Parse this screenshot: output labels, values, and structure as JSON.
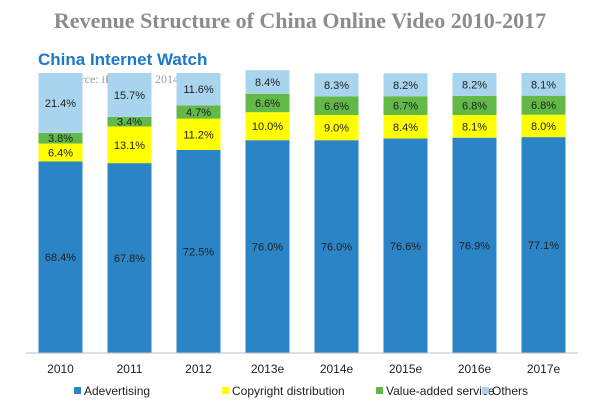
{
  "header": {
    "title": "Revenue Structure of China Online Video 2010-2017",
    "brand": "China Internet Watch",
    "source": "Source: iResearch, 2014"
  },
  "chart_data": {
    "type": "bar",
    "stacked": true,
    "title": "Revenue Structure of China Online Video 2010-2017",
    "categories": [
      "2010",
      "2011",
      "2012",
      "2013e",
      "2014e",
      "2015e",
      "2016e",
      "2017e"
    ],
    "series": [
      {
        "name": "Adevertising",
        "color": "#2b84c6",
        "values": [
          68.4,
          67.8,
          72.5,
          76.0,
          76.0,
          76.6,
          76.9,
          77.1
        ],
        "labels": [
          "68.4%",
          "67.8%",
          "72.5%",
          "76.0%",
          "76.0%",
          "76.6%",
          "76.9%",
          "77.1%"
        ]
      },
      {
        "name": "Copyright distribution",
        "color": "#ffff00",
        "values": [
          6.4,
          13.1,
          11.2,
          10.0,
          9.0,
          8.4,
          8.1,
          8.0
        ],
        "labels": [
          "6.4%",
          "13.1%",
          "11.2%",
          "10.0%",
          "9.0%",
          "8.4%",
          "8.1%",
          "8.0%"
        ]
      },
      {
        "name": "Value-added service",
        "color": "#63b947",
        "values": [
          3.8,
          3.4,
          4.7,
          6.6,
          6.6,
          6.7,
          6.8,
          6.8
        ],
        "labels": [
          "3.8%",
          "3.4%",
          "4.7%",
          "6.6%",
          "6.6%",
          "6.7%",
          "6.8%",
          "6.8%"
        ]
      },
      {
        "name": "Others",
        "color": "#a9d4ee",
        "values": [
          21.4,
          15.7,
          11.6,
          8.4,
          8.3,
          8.2,
          8.2,
          8.1
        ],
        "labels": [
          "21.4%",
          "15.7%",
          "11.6%",
          "8.4%",
          "8.3%",
          "8.2%",
          "8.2%",
          "8.1%"
        ]
      }
    ],
    "ylim": [
      0,
      100
    ],
    "grid": false,
    "legend": "bottom"
  }
}
